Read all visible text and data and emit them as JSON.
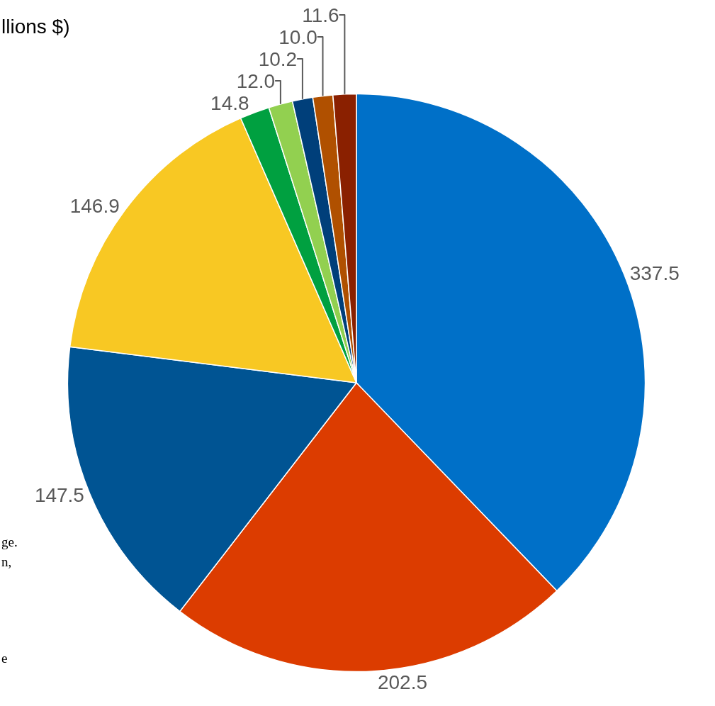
{
  "chart_data": {
    "type": "pie",
    "title": "llions $)",
    "categories": [
      null,
      null,
      null,
      null,
      null,
      null,
      null,
      null,
      null
    ],
    "values": [
      337.5,
      202.5,
      147.5,
      146.9,
      14.8,
      12.0,
      10.2,
      10.0,
      11.6
    ],
    "value_labels": [
      "337.5",
      "202.5",
      "147.5",
      "146.9",
      "14.8",
      "12.0",
      "10.2",
      "10.0",
      "11.6"
    ],
    "colors": [
      "#0070c8",
      "#dc3c00",
      "#005493",
      "#f8c823",
      "#00a040",
      "#92d050",
      "#003f7a",
      "#b05000",
      "#8a2000"
    ],
    "annotations": [
      "ge.",
      "n,",
      "e"
    ],
    "legend": false
  }
}
